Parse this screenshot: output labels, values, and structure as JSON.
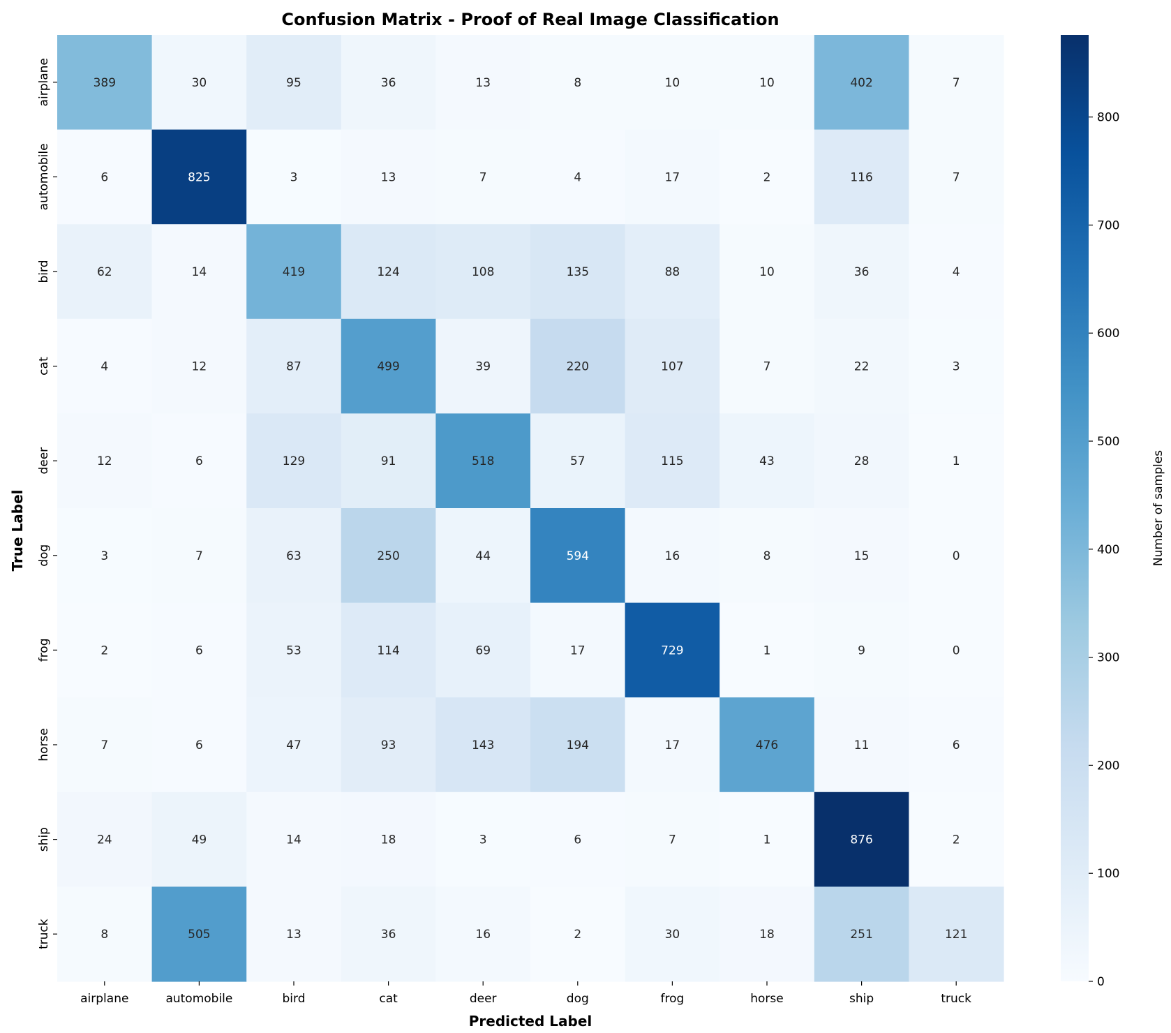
{
  "chart_data": {
    "type": "heatmap",
    "title": "Confusion Matrix - Proof of Real Image Classification",
    "xlabel": "Predicted Label",
    "ylabel": "True Label",
    "x_categories": [
      "airplane",
      "automobile",
      "bird",
      "cat",
      "deer",
      "dog",
      "frog",
      "horse",
      "ship",
      "truck"
    ],
    "y_categories": [
      "airplane",
      "automobile",
      "bird",
      "cat",
      "deer",
      "dog",
      "frog",
      "horse",
      "ship",
      "truck"
    ],
    "values": [
      [
        389,
        30,
        95,
        36,
        13,
        8,
        10,
        10,
        402,
        7
      ],
      [
        6,
        825,
        3,
        13,
        7,
        4,
        17,
        2,
        116,
        7
      ],
      [
        62,
        14,
        419,
        124,
        108,
        135,
        88,
        10,
        36,
        4
      ],
      [
        4,
        12,
        87,
        499,
        39,
        220,
        107,
        7,
        22,
        3
      ],
      [
        12,
        6,
        129,
        91,
        518,
        57,
        115,
        43,
        28,
        1
      ],
      [
        3,
        7,
        63,
        250,
        44,
        594,
        16,
        8,
        15,
        0
      ],
      [
        2,
        6,
        53,
        114,
        69,
        17,
        729,
        1,
        9,
        0
      ],
      [
        7,
        6,
        47,
        93,
        143,
        194,
        17,
        476,
        11,
        6
      ],
      [
        24,
        49,
        14,
        18,
        3,
        6,
        7,
        1,
        876,
        2
      ],
      [
        8,
        505,
        13,
        36,
        16,
        2,
        30,
        18,
        251,
        121
      ]
    ],
    "colormap": "Blues",
    "colorbar": {
      "label": "Number of samples",
      "min": 0,
      "max": 876,
      "ticks": [
        0,
        100,
        200,
        300,
        400,
        500,
        600,
        700,
        800
      ]
    }
  }
}
